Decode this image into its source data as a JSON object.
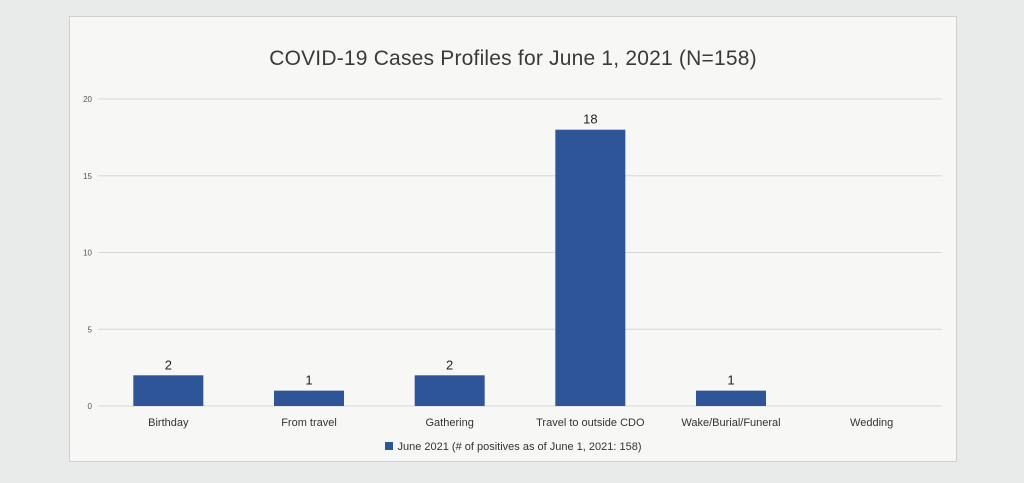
{
  "chart_data": {
    "type": "bar",
    "title": "COVID-19 Cases Profiles for June 1, 2021 (N=158)",
    "categories": [
      "Birthday",
      "From travel",
      "Gathering",
      "Travel to outside CDO",
      "Wake/Burial/Funeral",
      "Wedding"
    ],
    "series": [
      {
        "name": "June 2021 (# of positives as of June 1, 2021: 158)",
        "values": [
          2,
          1,
          2,
          18,
          1,
          null
        ],
        "labels": [
          "2",
          "1",
          "2",
          "18",
          "1",
          ""
        ]
      }
    ],
    "yticks": [
      "0",
      "5",
      "10",
      "15",
      "20"
    ],
    "ylim": [
      0,
      20
    ],
    "grid": true,
    "legend_position": "bottom",
    "bar_color": "#2e5597"
  }
}
